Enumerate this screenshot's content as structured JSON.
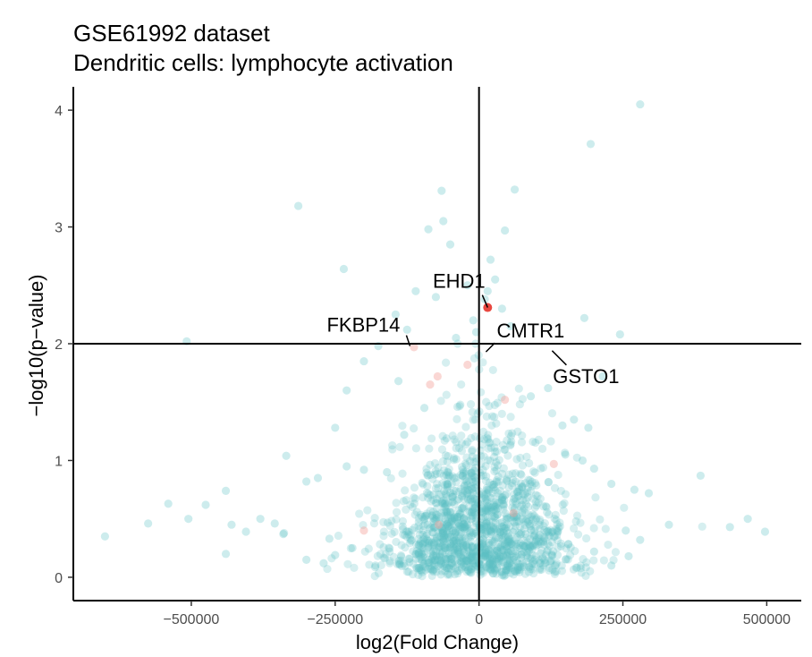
{
  "chart_data": {
    "type": "scatter",
    "title": "GSE61992 dataset",
    "subtitle": "Dendritic cells: lymphocyte activation",
    "xlabel": "log2(Fold Change)",
    "ylabel": "−log10(p−value)",
    "xlim": [
      -705000,
      560000
    ],
    "ylim": [
      -0.2,
      4.2
    ],
    "xticks": [
      -500000,
      -250000,
      0,
      250000,
      500000
    ],
    "xtick_labels": [
      "−500000",
      "−250000",
      "0",
      "250000",
      "500000"
    ],
    "yticks": [
      0,
      1,
      2,
      3,
      4
    ],
    "ytick_labels": [
      "0",
      "1",
      "2",
      "3",
      "4"
    ],
    "hline": 2,
    "vline": 0,
    "grid": false,
    "legend": "none",
    "colors": {
      "background_points": "#5bc0c2",
      "highlight_points": "#f4a6a0",
      "significant": "#e8473f"
    },
    "points_background": [
      [
        280000,
        4.05
      ],
      [
        194000,
        3.71
      ],
      [
        -314000,
        3.18
      ],
      [
        -65000,
        3.31
      ],
      [
        62000,
        3.32
      ],
      [
        -88000,
        2.98
      ],
      [
        -62000,
        3.05
      ],
      [
        45000,
        2.97
      ],
      [
        -50000,
        2.85
      ],
      [
        -235000,
        2.64
      ],
      [
        -110000,
        2.45
      ],
      [
        -145000,
        2.25
      ],
      [
        -75000,
        2.4
      ],
      [
        28000,
        2.55
      ],
      [
        20000,
        2.72
      ],
      [
        15000,
        2.45
      ],
      [
        10000,
        2.38
      ],
      [
        -20000,
        2.5
      ],
      [
        -10000,
        2.2
      ],
      [
        183000,
        2.22
      ],
      [
        245000,
        2.08
      ],
      [
        -508000,
        2.02
      ],
      [
        55000,
        2.15
      ],
      [
        40000,
        2.3
      ],
      [
        -5000,
        2.1
      ],
      [
        -40000,
        2.05
      ],
      [
        -125000,
        2.12
      ],
      [
        -175000,
        1.98
      ],
      [
        -200000,
        1.85
      ],
      [
        -140000,
        1.68
      ],
      [
        -230000,
        1.6
      ],
      [
        120000,
        1.62
      ],
      [
        215000,
        1.72
      ],
      [
        90000,
        1.55
      ],
      [
        -95000,
        1.45
      ],
      [
        145000,
        1.3
      ],
      [
        165000,
        1.35
      ],
      [
        190000,
        1.28
      ],
      [
        -250000,
        1.28
      ],
      [
        -130000,
        1.22
      ],
      [
        -335000,
        1.04
      ],
      [
        -280000,
        0.85
      ],
      [
        -300000,
        0.82
      ],
      [
        -230000,
        0.95
      ],
      [
        -200000,
        0.92
      ],
      [
        -160000,
        0.9
      ],
      [
        150000,
        1.05
      ],
      [
        180000,
        1.0
      ],
      [
        200000,
        0.93
      ],
      [
        230000,
        0.8
      ],
      [
        270000,
        0.75
      ],
      [
        295000,
        0.72
      ],
      [
        330000,
        0.45
      ],
      [
        -440000,
        0.74
      ],
      [
        -475000,
        0.62
      ],
      [
        -540000,
        0.63
      ],
      [
        -575000,
        0.46
      ],
      [
        -505000,
        0.5
      ],
      [
        -430000,
        0.45
      ],
      [
        -380000,
        0.5
      ],
      [
        -355000,
        0.46
      ],
      [
        -340000,
        0.37
      ],
      [
        -405000,
        0.39
      ],
      [
        -440000,
        0.2
      ],
      [
        -650000,
        0.35
      ],
      [
        385000,
        0.87
      ],
      [
        436000,
        0.43
      ],
      [
        467000,
        0.5
      ],
      [
        497000,
        0.39
      ],
      [
        280000,
        0.32
      ],
      [
        255000,
        0.4
      ],
      [
        -260000,
        0.33
      ],
      [
        -250000,
        0.19
      ],
      [
        -270000,
        0.12
      ],
      [
        -300000,
        0.15
      ],
      [
        -220000,
        0.25
      ],
      [
        -180000,
        0.1
      ],
      [
        260000,
        0.18
      ],
      [
        230000,
        0.1
      ],
      [
        200000,
        0.22
      ]
    ],
    "points_highlight": [
      [
        -113000,
        1.97
      ],
      [
        -72000,
        1.72
      ],
      [
        45000,
        1.52
      ],
      [
        -85000,
        1.65
      ],
      [
        130000,
        0.97
      ],
      [
        -20000,
        1.82
      ],
      [
        60000,
        0.55
      ],
      [
        -70000,
        0.45
      ],
      [
        -200000,
        0.4
      ]
    ],
    "points_significant": [
      [
        15000,
        2.31
      ]
    ],
    "labels": [
      {
        "text": "EHD1",
        "x": 15000,
        "y": 2.31
      },
      {
        "text": "FKBP14",
        "x": -120000,
        "y": 1.98
      },
      {
        "text": "CMTR1",
        "x": 12000,
        "y": 1.93
      },
      {
        "text": "GSTO1",
        "x": 127000,
        "y": 1.94
      }
    ]
  }
}
